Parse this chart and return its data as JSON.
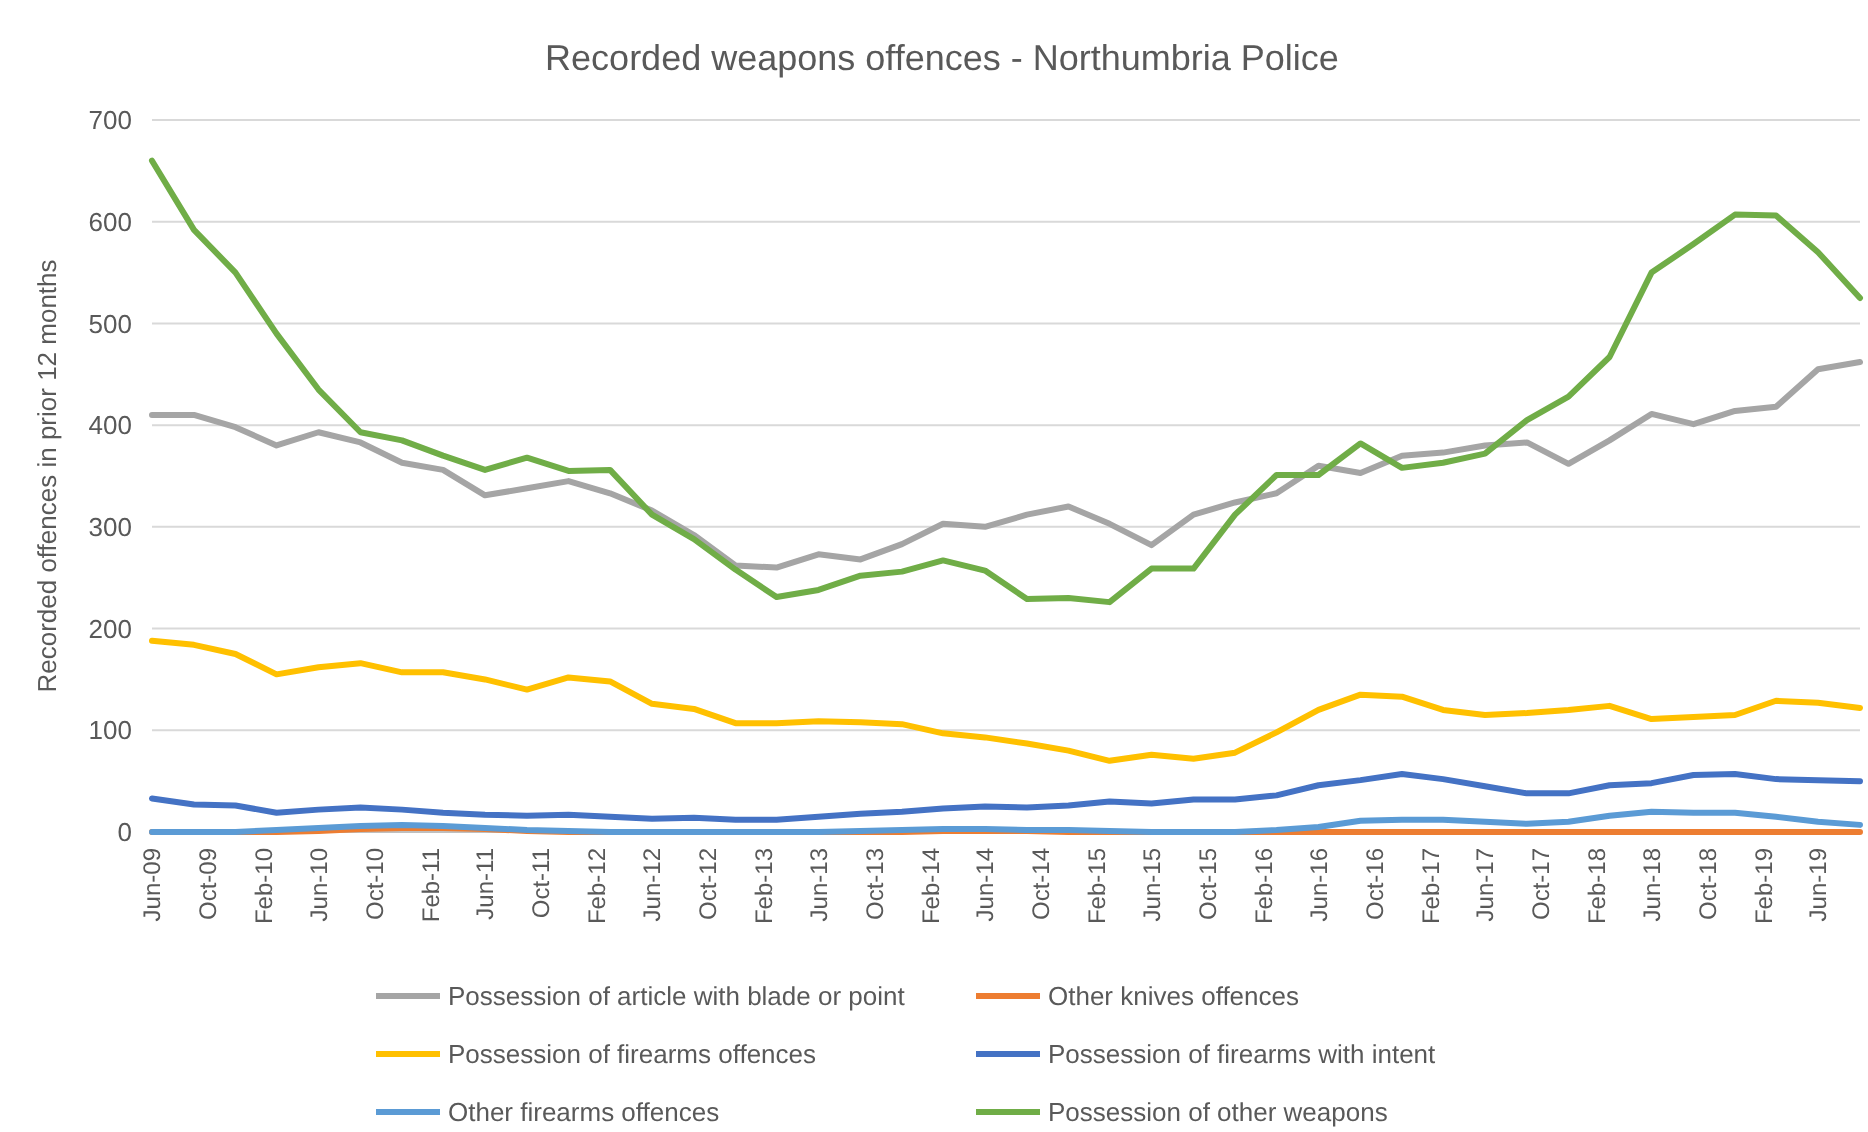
{
  "chart_data": {
    "type": "line",
    "title": "Recorded weapons offences - Northumbria Police",
    "ylabel": "Recorded offences in prior 12 months",
    "x": [
      "2009-06",
      "2009-09",
      "2009-12",
      "2010-03",
      "2010-06",
      "2010-09",
      "2010-12",
      "2011-03",
      "2011-06",
      "2011-09",
      "2011-12",
      "2012-03",
      "2012-06",
      "2012-09",
      "2012-12",
      "2013-03",
      "2013-06",
      "2013-09",
      "2013-12",
      "2014-03",
      "2014-06",
      "2014-09",
      "2014-12",
      "2015-03",
      "2015-06",
      "2015-09",
      "2015-12",
      "2016-03",
      "2016-06",
      "2016-09",
      "2016-12",
      "2017-03",
      "2017-06",
      "2017-09",
      "2017-12",
      "2018-03",
      "2018-06",
      "2018-09",
      "2018-12",
      "2019-03",
      "2019-06",
      "2019-09"
    ],
    "series": [
      {
        "name": "Possession of article with blade or point",
        "color": "#a5a5a5",
        "values": [
          410,
          410,
          398,
          380,
          393,
          383,
          363,
          356,
          331,
          338,
          345,
          333,
          316,
          292,
          262,
          260,
          273,
          268,
          283,
          303,
          300,
          312,
          320,
          303,
          282,
          312,
          324,
          333,
          360,
          353,
          370,
          373,
          380,
          383,
          362,
          385,
          411,
          401,
          414,
          418,
          455,
          462
        ]
      },
      {
        "name": "Other knives offences",
        "color": "#ed7d31",
        "values": [
          0,
          0,
          0,
          0,
          1,
          3,
          4,
          4,
          3,
          1,
          0,
          0,
          0,
          0,
          0,
          0,
          0,
          0,
          0,
          1,
          1,
          1,
          0,
          0,
          0,
          0,
          0,
          0,
          0,
          0,
          0,
          0,
          0,
          0,
          0,
          0,
          0,
          0,
          0,
          0,
          0,
          0
        ]
      },
      {
        "name": "Possession of firearms offences",
        "color": "#ffc000",
        "values": [
          188,
          184,
          175,
          155,
          162,
          166,
          157,
          157,
          150,
          140,
          152,
          148,
          126,
          121,
          107,
          107,
          109,
          108,
          106,
          97,
          93,
          87,
          80,
          70,
          76,
          72,
          78,
          98,
          120,
          135,
          133,
          120,
          115,
          117,
          120,
          124,
          111,
          113,
          115,
          129,
          127,
          122
        ]
      },
      {
        "name": "Possession of firearms with intent",
        "color": "#4472c4",
        "values": [
          33,
          27,
          26,
          19,
          22,
          24,
          22,
          19,
          17,
          16,
          17,
          15,
          13,
          14,
          12,
          12,
          15,
          18,
          20,
          23,
          25,
          24,
          26,
          30,
          28,
          32,
          32,
          36,
          46,
          51,
          57,
          52,
          45,
          38,
          38,
          46,
          48,
          56,
          57,
          52,
          51,
          50
        ]
      },
      {
        "name": "Other firearms offences",
        "color": "#5b9bd5",
        "values": [
          0,
          0,
          0,
          2,
          4,
          6,
          7,
          6,
          4,
          2,
          1,
          0,
          0,
          0,
          0,
          0,
          0,
          1,
          2,
          3,
          3,
          2,
          2,
          1,
          0,
          0,
          0,
          2,
          5,
          11,
          12,
          12,
          10,
          8,
          10,
          16,
          20,
          19,
          19,
          15,
          10,
          7
        ]
      },
      {
        "name": "Possession of other weapons",
        "color": "#70ad47",
        "values": [
          660,
          592,
          550,
          490,
          435,
          393,
          385,
          370,
          356,
          368,
          355,
          356,
          312,
          288,
          258,
          231,
          238,
          252,
          256,
          267,
          257,
          229,
          230,
          226,
          259,
          259,
          312,
          351,
          351,
          382,
          358,
          363,
          372,
          405,
          428,
          467,
          550,
          578,
          607,
          606,
          570,
          525
        ]
      }
    ],
    "xlim": [
      "2009-06",
      "2019-09"
    ],
    "xticks": [
      {
        "value": "2009-06",
        "label": "Jun-09"
      },
      {
        "value": "2009-10",
        "label": "Oct-09"
      },
      {
        "value": "2010-02",
        "label": "Feb-10"
      },
      {
        "value": "2010-06",
        "label": "Jun-10"
      },
      {
        "value": "2010-10",
        "label": "Oct-10"
      },
      {
        "value": "2011-02",
        "label": "Feb-11"
      },
      {
        "value": "2011-06",
        "label": "Jun-11"
      },
      {
        "value": "2011-10",
        "label": "Oct-11"
      },
      {
        "value": "2012-02",
        "label": "Feb-12"
      },
      {
        "value": "2012-06",
        "label": "Jun-12"
      },
      {
        "value": "2012-10",
        "label": "Oct-12"
      },
      {
        "value": "2013-02",
        "label": "Feb-13"
      },
      {
        "value": "2013-06",
        "label": "Jun-13"
      },
      {
        "value": "2013-10",
        "label": "Oct-13"
      },
      {
        "value": "2014-02",
        "label": "Feb-14"
      },
      {
        "value": "2014-06",
        "label": "Jun-14"
      },
      {
        "value": "2014-10",
        "label": "Oct-14"
      },
      {
        "value": "2015-02",
        "label": "Feb-15"
      },
      {
        "value": "2015-06",
        "label": "Jun-15"
      },
      {
        "value": "2015-10",
        "label": "Oct-15"
      },
      {
        "value": "2016-02",
        "label": "Feb-16"
      },
      {
        "value": "2016-06",
        "label": "Jun-16"
      },
      {
        "value": "2016-10",
        "label": "Oct-16"
      },
      {
        "value": "2017-02",
        "label": "Feb-17"
      },
      {
        "value": "2017-06",
        "label": "Jun-17"
      },
      {
        "value": "2017-10",
        "label": "Oct-17"
      },
      {
        "value": "2018-02",
        "label": "Feb-18"
      },
      {
        "value": "2018-06",
        "label": "Jun-18"
      },
      {
        "value": "2018-10",
        "label": "Oct-18"
      },
      {
        "value": "2019-02",
        "label": "Feb-19"
      },
      {
        "value": "2019-06",
        "label": "Jun-19"
      }
    ],
    "ylim": [
      0,
      700
    ],
    "yticks": [
      0,
      100,
      200,
      300,
      400,
      500,
      600,
      700
    ],
    "grid": "y",
    "legend": "bottom",
    "marker": "none",
    "line_style": "solid"
  }
}
